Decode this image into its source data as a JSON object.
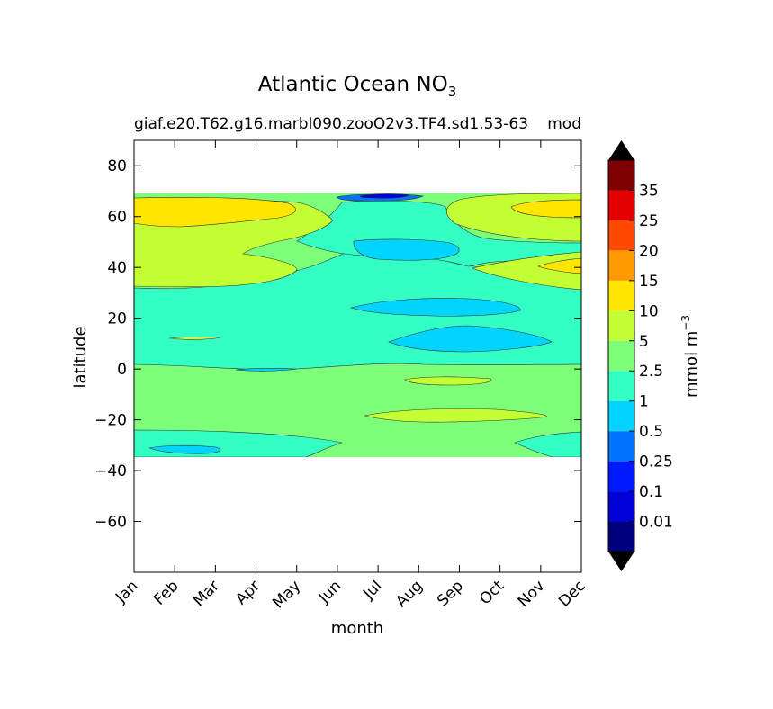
{
  "chart_data": {
    "type": "contourf",
    "title": "Atlantic Ocean NO",
    "title_subscript": "3",
    "subtitle_left": "giaf.e20.T62.g16.marbl090.zooO2v3.TF4.sd1.53-63",
    "subtitle_right": "mod",
    "xlabel": "month",
    "ylabel": "latitude",
    "x_ticks": [
      "Jan",
      "Feb",
      "Mar",
      "Apr",
      "May",
      "Jun",
      "Jul",
      "Aug",
      "Sep",
      "Oct",
      "Nov",
      "Dec"
    ],
    "y_ticks": [
      80,
      60,
      40,
      20,
      0,
      -20,
      -40,
      -60
    ],
    "ylim": [
      -80,
      90
    ],
    "data_lat_range": [
      -34,
      68
    ],
    "colorbar": {
      "label": "mmol m",
      "label_superscript": "−3",
      "extend": "both",
      "levels": [
        "0.01",
        "0.1",
        "0.25",
        "0.5",
        "1",
        "2.5",
        "5",
        "10",
        "15",
        "20",
        "25",
        "35"
      ],
      "colors": [
        "#00007f",
        "#0000d9",
        "#0019ff",
        "#0074ff",
        "#00d4ff",
        "#33ffc4",
        "#7dff7a",
        "#c4ff33",
        "#ffe600",
        "#ff9900",
        "#ff4a00",
        "#e50000",
        "#7f0000"
      ],
      "under_color": "#000000",
      "over_color": "#000000"
    },
    "regions": [
      {
        "level": "2.5–5",
        "desc": "background, southern tropics and mid-latitude bands"
      },
      {
        "level": "1–2.5",
        "desc": "tropical band 3°N–28°N and southern subtropics"
      },
      {
        "level": "5–10",
        "desc": "northern subpolar band 35°N–60°N"
      },
      {
        "level": "10–15",
        "desc": "high latitude 60°N–66°N in winter and December"
      },
      {
        "level": "0.5–1",
        "desc": "summer oligotrophic patches near 47°N, 24°N, 12°N"
      },
      {
        "level": "0.01–0.1",
        "desc": "July minimum near 67°N"
      }
    ]
  }
}
